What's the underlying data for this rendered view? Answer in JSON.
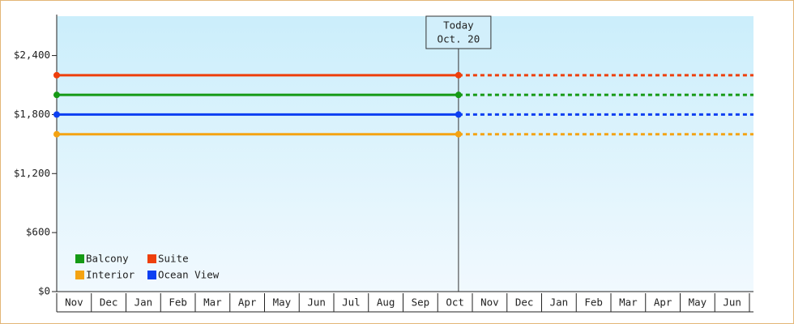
{
  "chart_data": {
    "type": "line",
    "categories": [
      "Nov",
      "Dec",
      "Jan",
      "Feb",
      "Mar",
      "Apr",
      "May",
      "Jun",
      "Jul",
      "Aug",
      "Sep",
      "Oct",
      "Nov",
      "Dec",
      "Jan",
      "Feb",
      "Mar",
      "Apr",
      "May",
      "Jun"
    ],
    "series": [
      {
        "name": "Balcony",
        "color": "#159a15",
        "value": 2000
      },
      {
        "name": "Suite",
        "color": "#ee3f0c",
        "value": 2200
      },
      {
        "name": "Interior",
        "color": "#f4a312",
        "value": 1600
      },
      {
        "name": "Ocean View",
        "color": "#0c3ff2",
        "value": 1800
      }
    ],
    "ylim": [
      0,
      2800
    ],
    "yticks": [
      {
        "value": 0,
        "label": "$0"
      },
      {
        "value": 600,
        "label": "$600"
      },
      {
        "value": 1200,
        "label": "$1,200"
      },
      {
        "value": 1800,
        "label": "$1,800"
      },
      {
        "value": 2400,
        "label": "$2,400"
      }
    ],
    "annotation": [
      "Today",
      "Oct. 20"
    ],
    "legend": "bottom-left"
  }
}
